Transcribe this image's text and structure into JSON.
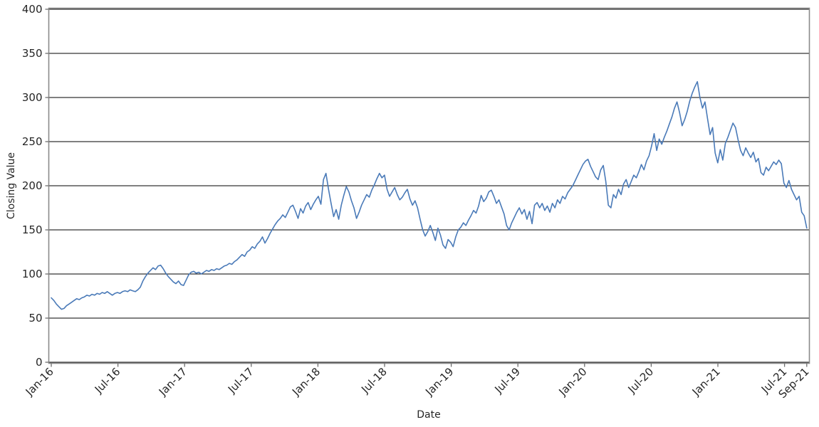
{
  "figure": {
    "background": "#ffffff"
  },
  "colors": {
    "line": "#4a7ab8",
    "grid": "#000000",
    "spine": "#8a8a8a",
    "tick_mark": "#6e6e6e",
    "text": "#262626"
  },
  "chart_data": {
    "type": "line",
    "title": "",
    "xlabel": "Date",
    "ylabel": "Closing Value",
    "ylim": [
      0,
      400
    ],
    "yticks": [
      0,
      50,
      100,
      150,
      200,
      250,
      300,
      350,
      400
    ],
    "grid": "horizontal-only",
    "legend": "none",
    "x_axis": {
      "start_label": "Jan-16",
      "end_label": "Sep-21",
      "total_months": 68,
      "tick_labels": [
        "Jan-16",
        "Jul-16",
        "Jan-17",
        "Jul-17",
        "Jan-18",
        "Jul-18",
        "Jan-19",
        "Jul-19",
        "Jan-20",
        "Jul-20",
        "Jan-21",
        "Jul-21",
        "Sep-21"
      ],
      "tick_months": [
        0,
        6,
        12,
        18,
        24,
        30,
        36,
        42,
        48,
        54,
        60,
        66,
        68
      ]
    },
    "series": [
      {
        "name": "Closing Value",
        "color": "#4a7ab8",
        "sampling": "approx-weekly from Jan-2016 to Sep-2021",
        "values": [
          73,
          70,
          66,
          63,
          60,
          61,
          64,
          66,
          68,
          70,
          72,
          71,
          73,
          74,
          76,
          75,
          77,
          76,
          78,
          77,
          79,
          78,
          80,
          78,
          76,
          78,
          79,
          78,
          80,
          81,
          80,
          82,
          81,
          80,
          82,
          85,
          92,
          97,
          101,
          104,
          107,
          105,
          109,
          110,
          106,
          101,
          97,
          94,
          91,
          89,
          92,
          88,
          87,
          93,
          99,
          102,
          103,
          101,
          102,
          100,
          102,
          104,
          103,
          105,
          104,
          106,
          105,
          107,
          109,
          110,
          112,
          111,
          114,
          116,
          119,
          122,
          120,
          125,
          127,
          131,
          129,
          134,
          137,
          142,
          135,
          140,
          146,
          151,
          156,
          160,
          163,
          167,
          164,
          170,
          176,
          178,
          171,
          163,
          174,
          169,
          177,
          181,
          173,
          179,
          184,
          188,
          179,
          207,
          214,
          196,
          180,
          165,
          173,
          162,
          178,
          189,
          199,
          193,
          183,
          175,
          163,
          170,
          178,
          184,
          190,
          187,
          195,
          201,
          208,
          214,
          209,
          212,
          196,
          188,
          193,
          198,
          190,
          184,
          187,
          192,
          196,
          185,
          178,
          183,
          175,
          162,
          150,
          143,
          148,
          155,
          147,
          138,
          152,
          144,
          133,
          129,
          139,
          136,
          131,
          142,
          150,
          153,
          158,
          155,
          161,
          166,
          172,
          169,
          177,
          189,
          182,
          186,
          193,
          195,
          188,
          180,
          184,
          176,
          168,
          155,
          150,
          158,
          164,
          170,
          175,
          168,
          173,
          162,
          171,
          157,
          178,
          181,
          175,
          180,
          172,
          177,
          170,
          180,
          175,
          184,
          180,
          188,
          185,
          192,
          196,
          200,
          206,
          212,
          218,
          224,
          228,
          230,
          222,
          216,
          210,
          207,
          218,
          223,
          205,
          178,
          175,
          190,
          186,
          196,
          190,
          202,
          207,
          198,
          205,
          212,
          209,
          216,
          224,
          218,
          228,
          234,
          245,
          259,
          240,
          253,
          247,
          255,
          262,
          270,
          278,
          288,
          295,
          283,
          268,
          275,
          284,
          296,
          305,
          312,
          318,
          300,
          288,
          295,
          276,
          258,
          266,
          237,
          226,
          241,
          229,
          248,
          255,
          263,
          271,
          266,
          252,
          240,
          234,
          243,
          237,
          232,
          238,
          227,
          231,
          215,
          212,
          221,
          217,
          222,
          227,
          224,
          229,
          225,
          203,
          198,
          206,
          196,
          190,
          184,
          188,
          170,
          166,
          152
        ]
      }
    ]
  }
}
